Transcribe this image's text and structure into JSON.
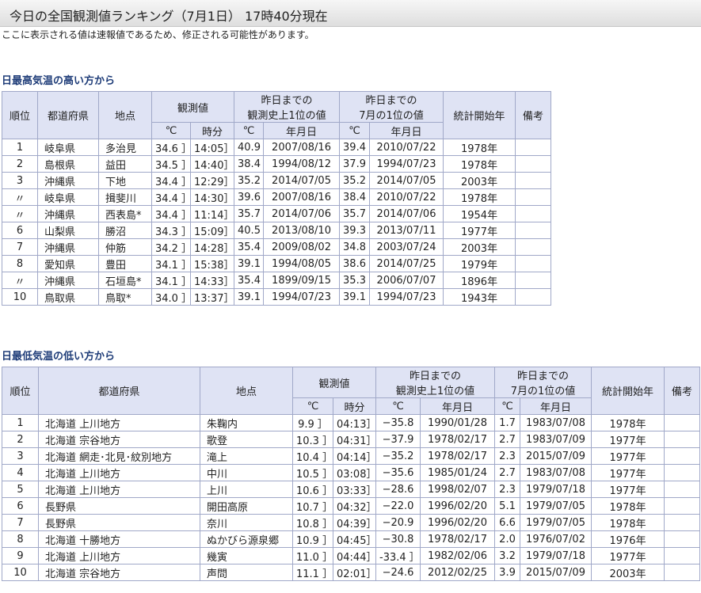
{
  "header": {
    "title": "今日の全国観測値ランキング（7月1日） 17時40分現在",
    "note": "ここに表示される値は速報値であるため、修正される可能性があります。"
  },
  "tables": [
    {
      "caption": "日最高気温の高い方から",
      "headers": {
        "top": [
          "順位",
          "都道府県",
          "地点",
          "観測値",
          [
            "昨日までの",
            "観測史上1位の値"
          ],
          [
            "昨日までの",
            "7月の1位の値"
          ],
          "統計開始年",
          "備考"
        ],
        "sub": [
          "℃",
          "時分",
          "℃",
          "年月日",
          "℃",
          "年月日"
        ]
      },
      "rows": [
        [
          "1",
          "岐阜県",
          "多治見",
          "34.6 ］",
          "14:05］",
          "40.9",
          "2007/08/16",
          "39.4",
          "2010/07/22",
          "1978年"
        ],
        [
          "2",
          "島根県",
          "益田",
          "34.5 ］",
          "14:40］",
          "38.4",
          "1994/08/12",
          "37.9",
          "1994/07/23",
          "1978年"
        ],
        [
          "3",
          "沖縄県",
          "下地",
          "34.4 ］",
          "12:29］",
          "35.2",
          "2014/07/05",
          "35.2",
          "2014/07/05",
          "2003年"
        ],
        [
          "〃",
          "岐阜県",
          "揖斐川",
          "34.4 ］",
          "14:30］",
          "39.6",
          "2007/08/16",
          "38.4",
          "2010/07/22",
          "1978年"
        ],
        [
          "〃",
          "沖縄県",
          "西表島*",
          "34.4 ］",
          "11:14］",
          "35.7",
          "2014/07/06",
          "35.7",
          "2014/07/06",
          "1954年"
        ],
        [
          "6",
          "山梨県",
          "勝沼",
          "34.3 ］",
          "15:09］",
          "40.5",
          "2013/08/10",
          "39.3",
          "2013/07/11",
          "1977年"
        ],
        [
          "7",
          "沖縄県",
          "仲筋",
          "34.2 ］",
          "14:28］",
          "35.4",
          "2009/08/02",
          "34.8",
          "2003/07/24",
          "2003年"
        ],
        [
          "8",
          "愛知県",
          "豊田",
          "34.1 ］",
          "15:38］",
          "39.1",
          "1994/08/05",
          "38.6",
          "2014/07/25",
          "1979年"
        ],
        [
          "〃",
          "沖縄県",
          "石垣島*",
          "34.1 ］",
          "14:33］",
          "35.4",
          "1899/09/15",
          "35.3",
          "2006/07/07",
          "1896年"
        ],
        [
          "10",
          "鳥取県",
          "鳥取*",
          "34.0 ］",
          "13:37］",
          "39.1",
          "1994/07/23",
          "39.1",
          "1994/07/23",
          "1943年"
        ]
      ]
    },
    {
      "caption": "日最低気温の低い方から",
      "headers": {
        "top": [
          "順位",
          "都道府県",
          "地点",
          "観測値",
          [
            "昨日までの",
            "観測史上1位の値"
          ],
          [
            "昨日までの",
            "7月の1位の値"
          ],
          "統計開始年",
          "備考"
        ],
        "sub": [
          "℃",
          "時分",
          "℃",
          "年月日",
          "℃",
          "年月日"
        ]
      },
      "rows": [
        [
          "1",
          "北海道 上川地方",
          "朱鞠内",
          "9.9 ］",
          "04:13］",
          "−35.8",
          "1990/01/28",
          "1.7",
          "1983/07/08",
          "1978年"
        ],
        [
          "2",
          "北海道 宗谷地方",
          "歌登",
          "10.3 ］",
          "04:31］",
          "−37.9",
          "1978/02/17",
          "2.7",
          "1983/07/09",
          "1977年"
        ],
        [
          "3",
          "北海道 網走･北見･紋別地方",
          "滝上",
          "10.4 ］",
          "04:14］",
          "−35.2",
          "1978/02/17",
          "2.3",
          "2015/07/09",
          "1977年"
        ],
        [
          "4",
          "北海道 上川地方",
          "中川",
          "10.5 ］",
          "03:08］",
          "−35.6",
          "1985/01/24",
          "2.7",
          "1983/07/08",
          "1977年"
        ],
        [
          "5",
          "北海道 上川地方",
          "上川",
          "10.6 ］",
          "03:33］",
          "−28.6",
          "1998/02/07",
          "2.3",
          "1979/07/18",
          "1977年"
        ],
        [
          "6",
          "長野県",
          "開田高原",
          "10.7 ］",
          "04:32］",
          "−22.0",
          "1996/02/20",
          "5.1",
          "1979/07/05",
          "1978年"
        ],
        [
          "7",
          "長野県",
          "奈川",
          "10.8 ］",
          "04:39］",
          "−20.9",
          "1996/02/20",
          "6.6",
          "1979/07/05",
          "1978年"
        ],
        [
          "8",
          "北海道 十勝地方",
          "ぬかびら源泉郷",
          "10.9 ］",
          "04:45］",
          "−30.8",
          "1978/02/17",
          "2.0",
          "1976/07/02",
          "1976年"
        ],
        [
          "9",
          "北海道 上川地方",
          "幾寅",
          "11.0 ］",
          "04:44］",
          "-33.4 ］",
          "1982/02/06",
          "3.2",
          "1979/07/18",
          "1977年"
        ],
        [
          "10",
          "北海道 宗谷地方",
          "声問",
          "11.1 ］",
          "02:01］",
          "−24.6",
          "2012/02/25",
          "3.9",
          "2015/07/09",
          "2003年"
        ]
      ]
    }
  ]
}
